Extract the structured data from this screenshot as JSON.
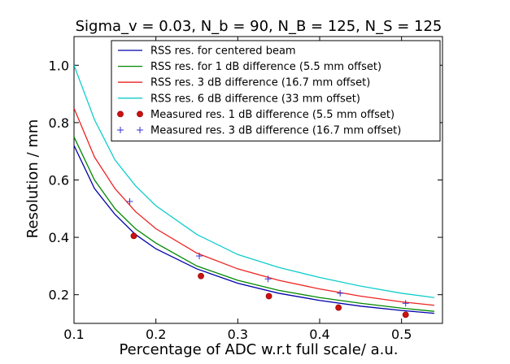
{
  "chart_data": {
    "type": "line",
    "title": "Sigma_v = 0.03, N_b = 90, N_B = 125, N_S = 125",
    "xlabel": "Percentage of ADC w.r.t full scale/ a.u.",
    "ylabel": "Resolution / mm",
    "xlim": [
      0.1,
      0.55
    ],
    "ylim": [
      0.1,
      1.1
    ],
    "xticks": [
      0.1,
      0.2,
      0.3,
      0.4,
      0.5
    ],
    "xtick_labels": [
      "0.1",
      "0.2",
      "0.3",
      "0.4",
      "0.5"
    ],
    "yticks": [
      0.2,
      0.4,
      0.6,
      0.8,
      1.0
    ],
    "ytick_labels": [
      "0.2",
      "0.4",
      "0.6",
      "0.8",
      "1.0"
    ],
    "grid": false,
    "legend_position": "top-center",
    "series": [
      {
        "name": "RSS res. for centered beam",
        "kind": "line",
        "color": "#0000aa",
        "x": [
          0.1,
          0.125,
          0.15,
          0.175,
          0.2,
          0.25,
          0.3,
          0.35,
          0.4,
          0.45,
          0.5,
          0.54
        ],
        "y": [
          0.72,
          0.57,
          0.48,
          0.41,
          0.36,
          0.29,
          0.24,
          0.205,
          0.18,
          0.16,
          0.145,
          0.135
        ]
      },
      {
        "name": "RSS res. for 1 dB difference (5.5 mm offset)",
        "kind": "line",
        "color": "#008800",
        "x": [
          0.1,
          0.125,
          0.15,
          0.175,
          0.2,
          0.25,
          0.3,
          0.35,
          0.4,
          0.45,
          0.5,
          0.54
        ],
        "y": [
          0.75,
          0.6,
          0.5,
          0.43,
          0.38,
          0.3,
          0.25,
          0.215,
          0.19,
          0.17,
          0.153,
          0.142
        ]
      },
      {
        "name": "RSS res. 3 dB difference (16.7 mm offset)",
        "kind": "line",
        "color": "#ee2222",
        "x": [
          0.1,
          0.125,
          0.15,
          0.175,
          0.2,
          0.25,
          0.3,
          0.35,
          0.4,
          0.45,
          0.5,
          0.54
        ],
        "y": [
          0.85,
          0.68,
          0.57,
          0.49,
          0.43,
          0.345,
          0.29,
          0.25,
          0.22,
          0.195,
          0.175,
          0.163
        ]
      },
      {
        "name": "RSS res. 6 dB difference (33 mm offset)",
        "kind": "line",
        "color": "#11cccc",
        "x": [
          0.1,
          0.125,
          0.15,
          0.175,
          0.2,
          0.25,
          0.3,
          0.35,
          0.4,
          0.45,
          0.5,
          0.54
        ],
        "y": [
          1.0,
          0.81,
          0.67,
          0.58,
          0.51,
          0.41,
          0.34,
          0.295,
          0.26,
          0.23,
          0.205,
          0.19
        ]
      },
      {
        "name": "Measured res. 1 dB difference (5.5 mm offset)",
        "kind": "scatter",
        "marker": "circle",
        "color": "#cc1111",
        "x": [
          0.173,
          0.255,
          0.338,
          0.423,
          0.505
        ],
        "y": [
          0.405,
          0.265,
          0.195,
          0.155,
          0.13
        ]
      },
      {
        "name": "Measured res. 3 dB difference (16.7 mm offset)",
        "kind": "scatter",
        "marker": "plus",
        "color": "#3333cc",
        "x": [
          0.168,
          0.253,
          0.337,
          0.425,
          0.505
        ],
        "y": [
          0.525,
          0.335,
          0.255,
          0.205,
          0.17
        ]
      }
    ]
  }
}
